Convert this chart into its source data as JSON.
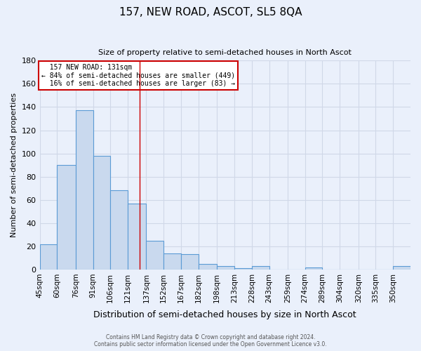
{
  "title": "157, NEW ROAD, ASCOT, SL5 8QA",
  "subtitle": "Size of property relative to semi-detached houses in North Ascot",
  "xlabel": "Distribution of semi-detached houses by size in North Ascot",
  "ylabel": "Number of semi-detached properties",
  "bar_labels": [
    "45sqm",
    "60sqm",
    "76sqm",
    "91sqm",
    "106sqm",
    "121sqm",
    "137sqm",
    "152sqm",
    "167sqm",
    "182sqm",
    "198sqm",
    "213sqm",
    "228sqm",
    "243sqm",
    "259sqm",
    "274sqm",
    "289sqm",
    "304sqm",
    "320sqm",
    "335sqm",
    "350sqm"
  ],
  "bar_values": [
    22,
    90,
    137,
    98,
    68,
    57,
    25,
    14,
    13,
    5,
    3,
    1,
    3,
    0,
    0,
    2,
    0,
    0,
    0,
    0,
    3
  ],
  "bar_edges": [
    45,
    60,
    76,
    91,
    106,
    121,
    137,
    152,
    167,
    182,
    198,
    213,
    228,
    243,
    259,
    274,
    289,
    304,
    320,
    335,
    350,
    365
  ],
  "bar_color": "#c9d9ee",
  "bar_edgecolor": "#5b9bd5",
  "marker_value": 131,
  "marker_color": "#cc0000",
  "annotation_line1": "157 NEW ROAD: 131sqm",
  "annotation_line2": "← 84% of semi-detached houses are smaller (449)",
  "annotation_line3": "16% of semi-detached houses are larger (83) →",
  "annotation_box_edgecolor": "#cc0000",
  "ylim": [
    0,
    180
  ],
  "yticks": [
    0,
    20,
    40,
    60,
    80,
    100,
    120,
    140,
    160,
    180
  ],
  "grid_color": "#d0d8e8",
  "background_color": "#eaf0fb",
  "footer_line1": "Contains HM Land Registry data © Crown copyright and database right 2024.",
  "footer_line2": "Contains public sector information licensed under the Open Government Licence v3.0."
}
